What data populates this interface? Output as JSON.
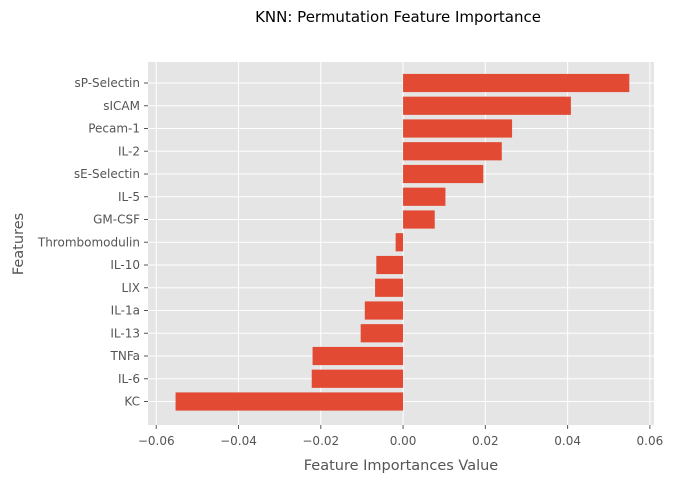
{
  "chart_data": {
    "type": "bar",
    "orientation": "horizontal",
    "title": "KNN: Permutation Feature Importance",
    "xlabel": "Feature Importances Value",
    "ylabel": "Features",
    "xlim": [
      -0.062,
      0.061
    ],
    "xticks": [
      -0.06,
      -0.04,
      -0.02,
      0.0,
      0.02,
      0.04,
      0.06
    ],
    "xtick_labels": [
      "−0.06",
      "−0.04",
      "−0.02",
      "0.00",
      "0.02",
      "0.04",
      "0.06"
    ],
    "grid": true,
    "style": "ggplot",
    "bar_color": "#E24A33",
    "plot_background": "#E5E5E5",
    "categories": [
      "sP-Selectin",
      "sICAM",
      "Pecam-1",
      "IL-2",
      "sE-Selectin",
      "IL-5",
      "GM-CSF",
      "Thrombomodulin",
      "IL-10",
      "LIX",
      "IL-1a",
      "IL-13",
      "TNFa",
      "IL-6",
      "KC"
    ],
    "values": [
      0.055,
      0.0408,
      0.0265,
      0.024,
      0.0195,
      0.0103,
      0.0077,
      -0.0018,
      -0.0065,
      -0.0068,
      -0.0093,
      -0.0103,
      -0.022,
      -0.0222,
      -0.0553
    ]
  }
}
